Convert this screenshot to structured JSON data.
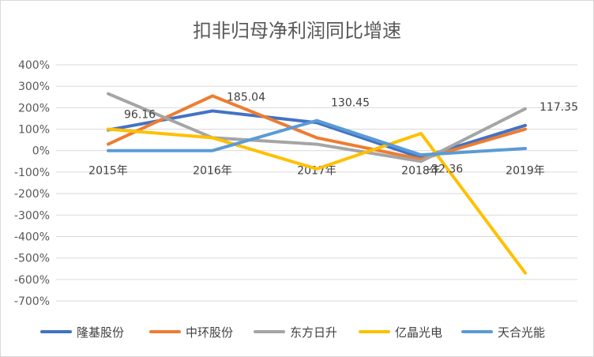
{
  "chart_data": {
    "type": "line",
    "title": "扣非归母净利润同比增速",
    "xlabel": "",
    "ylabel": "",
    "categories": [
      "2015年",
      "2016年",
      "2017年",
      "2018年",
      "2019年"
    ],
    "ylim": [
      -700,
      400
    ],
    "yticks": [
      400,
      300,
      200,
      100,
      0,
      -100,
      -200,
      -300,
      -400,
      -500,
      -600,
      -700
    ],
    "ytick_labels": [
      "400%",
      "300%",
      "200%",
      "100%",
      "0%",
      "-100%",
      "-200%",
      "-300%",
      "-400%",
      "-500%",
      "-600%",
      "-700%"
    ],
    "grid": true,
    "legend_position": "bottom",
    "series": [
      {
        "name": "隆基股份",
        "color": "#4472C4",
        "values": [
          96.16,
          185.04,
          130.45,
          -32.36,
          117.35
        ]
      },
      {
        "name": "中环股份",
        "color": "#ED7D31",
        "values": [
          30,
          255,
          60,
          -40,
          100
        ]
      },
      {
        "name": "东方日升",
        "color": "#A5A5A5",
        "values": [
          265,
          60,
          30,
          -50,
          195
        ]
      },
      {
        "name": "亿晶光电",
        "color": "#FFC000",
        "values": [
          100,
          60,
          -85,
          80,
          -570
        ]
      },
      {
        "name": "天合光能",
        "color": "#5B9BD5",
        "values": [
          0,
          0,
          140,
          -20,
          10
        ]
      }
    ],
    "data_labels": [
      {
        "series": 0,
        "index": 0,
        "text": "96.16"
      },
      {
        "series": 0,
        "index": 1,
        "text": "185.04"
      },
      {
        "series": 0,
        "index": 2,
        "text": "130.45"
      },
      {
        "series": 0,
        "index": 3,
        "text": "-32.36"
      },
      {
        "series": 0,
        "index": 4,
        "text": "117.35"
      }
    ]
  }
}
